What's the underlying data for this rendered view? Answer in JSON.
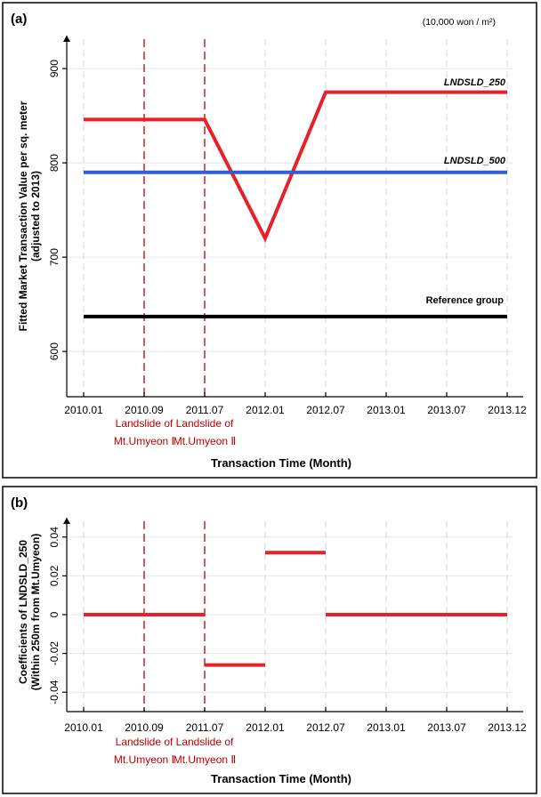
{
  "chart_data": [
    {
      "type": "line",
      "panel_label": "(a)",
      "unit_note": "(10,000 won / m²)",
      "ylabel_line1": "Fitted Market Transaction Value per sq. meter",
      "ylabel_line2": "(adjusted to 2013)",
      "xlabel": "Transaction Time (Month)",
      "x_ticks": [
        "2010.01",
        "2010.09",
        "2011.07",
        "2012.01",
        "2012.07",
        "2013.01",
        "2013.07",
        "2013.12"
      ],
      "y_ticks": [
        600,
        700,
        800,
        900
      ],
      "ylim": [
        552,
        935
      ],
      "series": [
        {
          "name": "LNDSLD_250",
          "color": "#e8202a",
          "points": [
            [
              "2010.01",
              846
            ],
            [
              "2011.07",
              846
            ],
            [
              "2012.01",
              720
            ],
            [
              "2012.07",
              875
            ],
            [
              "2013.12",
              875
            ]
          ]
        },
        {
          "name": "LNDSLD_500",
          "color": "#2f5fd6",
          "points": [
            [
              "2010.01",
              790
            ],
            [
              "2013.12",
              790
            ]
          ]
        },
        {
          "name": "Reference group",
          "color": "#000000",
          "points": [
            [
              "2010.01",
              637
            ],
            [
              "2013.12",
              637
            ]
          ]
        }
      ],
      "events": [
        {
          "x": "2010.09",
          "line1": "Landslide of",
          "line2": "Mt.Umyeon Ⅰ"
        },
        {
          "x": "2011.07",
          "line1": "Landslide of",
          "line2": "Mt.Umyeon Ⅱ"
        }
      ]
    },
    {
      "type": "line",
      "panel_label": "(b)",
      "ylabel_line1": "Coefficients of LNDSLD_250",
      "ylabel_line2": "(Within 250m from Mt.Umyeon)",
      "xlabel": "Transaction Time (Month)",
      "x_ticks": [
        "2010.01",
        "2010.09",
        "2011.07",
        "2012.01",
        "2012.07",
        "2013.01",
        "2013.07",
        "2013.12"
      ],
      "y_ticks": [
        -0.04,
        -0.02,
        0,
        0.02,
        0.04
      ],
      "ytick_labels": [
        "-0.04",
        "-0.02",
        "0",
        "0.02",
        "0.04"
      ],
      "ylim": [
        -0.05,
        0.05
      ],
      "series": [
        {
          "name": "LNDSLD_250",
          "color": "#e8202a",
          "segments": [
            [
              [
                "2010.01",
                0
              ],
              [
                "2011.07",
                0
              ]
            ],
            [
              [
                "2011.07",
                -0.026
              ],
              [
                "2012.01",
                -0.026
              ]
            ],
            [
              [
                "2012.01",
                0.032
              ],
              [
                "2012.07",
                0.032
              ]
            ],
            [
              [
                "2012.07",
                0
              ],
              [
                "2013.12",
                0
              ]
            ]
          ]
        }
      ],
      "events": [
        {
          "x": "2010.09",
          "line1": "Landslide of",
          "line2": "Mt.Umyeon Ⅰ"
        },
        {
          "x": "2011.07",
          "line1": "Landslide of",
          "line2": "Mt.Umyeon Ⅱ"
        }
      ]
    }
  ]
}
